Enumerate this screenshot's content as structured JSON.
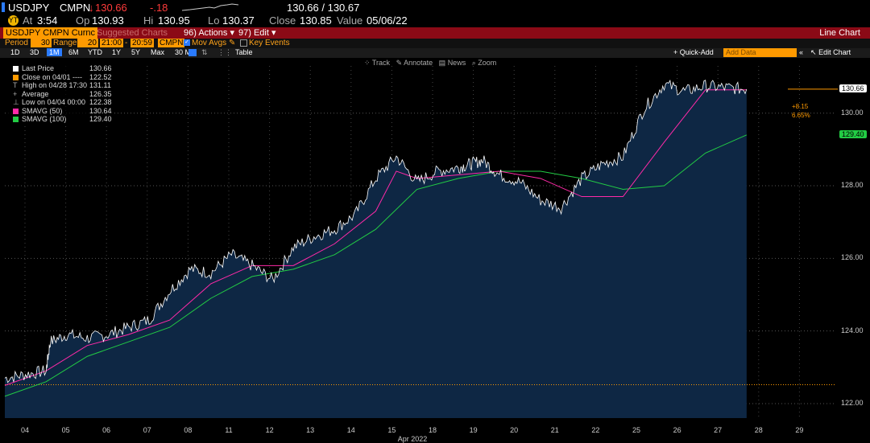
{
  "header": {
    "ticker": "USDJPY",
    "source": "CMPN",
    "last": "130.66",
    "change": "-.18",
    "bid_ask": "130.66 / 130.67",
    "time_label": "At",
    "time": "3:54",
    "open_label": "Op",
    "open": "130.93",
    "high_label": "Hi",
    "high": "130.95",
    "low_label": "Lo",
    "low": "130.37",
    "close_label": "Close",
    "close": "130.85",
    "value_label": "Value",
    "value_date": "05/06/22"
  },
  "toolbar": {
    "security": "USDJPY CMPN Curnc",
    "suggested": "Suggested Charts",
    "actions": "96) Actions",
    "edit": "97) Edit",
    "title": "Line Chart",
    "period_label": "Period",
    "period_value": "30",
    "range_label": "Range",
    "range_value": "20",
    "time_from": "21:00",
    "time_to": "20:59",
    "source_box": "CMPN",
    "mov_avgs": "Mov Avgs",
    "key_events": "Key Events"
  },
  "periods": [
    "1D",
    "3D",
    "1M",
    "6M",
    "YTD",
    "1Y",
    "5Y",
    "Max",
    "30 Min"
  ],
  "active_period": "1M",
  "table_label": "Table",
  "quick_add": "+ Quick-Add",
  "add_data_placeholder": "Add Data",
  "edit_chart": "Edit Chart",
  "tools": [
    "Track",
    "Annotate",
    "News",
    "Zoom"
  ],
  "legend": [
    {
      "label": "Last Price",
      "value": "130.66",
      "color": "#ffffff",
      "marker": "box"
    },
    {
      "label": "Close on 04/01 ----",
      "value": "122.52",
      "color": "#ff9a00",
      "marker": "box"
    },
    {
      "label": "High on 04/28 17:30",
      "value": "131.11",
      "color": "#aaaaaa",
      "marker": "T"
    },
    {
      "label": "Average",
      "value": "126.35",
      "color": "#aaaaaa",
      "marker": "+"
    },
    {
      "label": "Low on 04/04 00:00",
      "value": "122.38",
      "color": "#aaaaaa",
      "marker": "⊥"
    },
    {
      "label": "SMAVG (50)",
      "value": "130.64",
      "color": "#ff2aa8",
      "marker": "box"
    },
    {
      "label": "SMAVG (100)",
      "value": "129.40",
      "color": "#22cc44",
      "marker": "box"
    }
  ],
  "annotations": {
    "change_abs": "+8.15",
    "change_pct": "6.65%",
    "last_box": "130.66",
    "sma100_box": "129.40"
  },
  "chart_data": {
    "type": "line",
    "x_axis_label": "Apr 2022",
    "x_ticks": [
      "04",
      "05",
      "06",
      "07",
      "08",
      "11",
      "12",
      "13",
      "14",
      "15",
      "18",
      "19",
      "20",
      "21",
      "22",
      "25",
      "26",
      "27",
      "28",
      "29"
    ],
    "y_ticks": [
      "122.00",
      "124.00",
      "126.00",
      "128.00",
      "130.00"
    ],
    "ylim": [
      121.6,
      131.3
    ],
    "reference_close": 122.52,
    "series": [
      {
        "name": "Last Price",
        "color": "#ffffff",
        "x": [
          0,
          0.5,
          1,
          1.1,
          1.5,
          2,
          2.5,
          3,
          3.5,
          4,
          4.5,
          5,
          5.5,
          6,
          6.5,
          7,
          7.5,
          8,
          8.5,
          9,
          9.5,
          10,
          10.5,
          11,
          11.3,
          11.6,
          12,
          12.5,
          13,
          13.5,
          14,
          14.5,
          15,
          15.5,
          16,
          16.5,
          17,
          17.5,
          18,
          18.5,
          18.8,
          19
        ],
        "y": [
          122.7,
          122.8,
          122.9,
          123.7,
          123.9,
          123.8,
          123.9,
          124.1,
          124.3,
          125.1,
          125.7,
          125.6,
          126.1,
          125.8,
          125.4,
          126.3,
          126.6,
          126.8,
          127.2,
          128.2,
          128.8,
          128.1,
          128.4,
          128.5,
          128.6,
          128.7,
          128.3,
          128.1,
          127.6,
          127.4,
          128.2,
          128.6,
          128.8,
          130.1,
          130.8,
          130.6,
          130.75,
          130.7,
          130.66,
          null,
          null,
          null
        ]
      },
      {
        "name": "SMAVG (50)",
        "color": "#ff2aa8",
        "x": [
          0,
          1,
          2,
          3,
          4,
          5,
          6,
          7,
          8,
          9,
          9.5,
          10,
          11,
          12,
          13,
          14,
          15,
          16,
          17,
          18
        ],
        "y": [
          122.5,
          122.9,
          123.6,
          123.9,
          124.3,
          125.3,
          125.8,
          125.8,
          126.4,
          127.3,
          128.4,
          128.2,
          128.3,
          128.4,
          128.2,
          127.7,
          127.7,
          129.2,
          130.64,
          130.64
        ]
      },
      {
        "name": "SMAVG (100)",
        "color": "#22cc44",
        "x": [
          0,
          1,
          2,
          3,
          4,
          5,
          6,
          7,
          8,
          9,
          10,
          11,
          12,
          13,
          14,
          15,
          16,
          17,
          18
        ],
        "y": [
          122.2,
          122.6,
          123.3,
          123.7,
          124.1,
          124.9,
          125.5,
          125.7,
          126.1,
          126.8,
          127.9,
          128.2,
          128.4,
          128.4,
          128.2,
          127.9,
          128.0,
          128.9,
          129.4
        ]
      }
    ]
  }
}
